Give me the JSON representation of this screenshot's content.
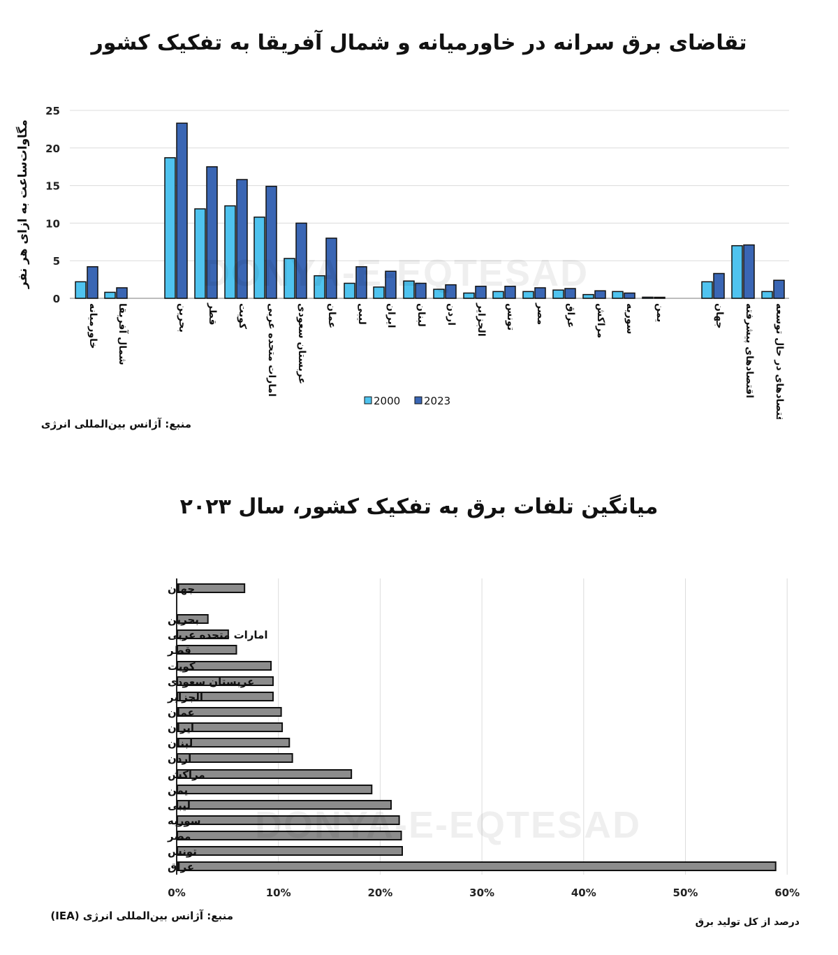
{
  "chart_data": [
    {
      "type": "bar",
      "title": "تقاضای برق سرانه در خاورمیانه و شمال آفریقا به تفکیک کشور",
      "xlabel": "",
      "ylabel": "مگاوات‌ساعت به ازای هر نفر",
      "ylim": [
        0,
        25
      ],
      "yticks": [
        0,
        5,
        10,
        15,
        20,
        25
      ],
      "grid": true,
      "legend_position": "bottom",
      "categories": [
        "خاورمیانه",
        "شمال آفریقا",
        "بحرین",
        "قطر",
        "کویت",
        "امارات متحده عربی",
        "عربستان سعودی",
        "عمان",
        "لیبی",
        "ایران",
        "لبنان",
        "اردن",
        "الجزایر",
        "تونس",
        "مصر",
        "عراق",
        "مراکش",
        "سوریه",
        "یمن",
        "جهان",
        "اقتصادهای پیشرفته",
        "اقتصادهای در حال توسعه"
      ],
      "series": [
        {
          "name": "2000",
          "color": "#4fc3ef",
          "values": [
            2.2,
            0.8,
            18.7,
            11.9,
            12.3,
            10.8,
            5.3,
            3.0,
            2.0,
            1.5,
            2.3,
            1.2,
            0.7,
            0.9,
            0.9,
            1.1,
            0.5,
            0.9,
            0.15,
            2.2,
            7.0,
            0.9
          ]
        },
        {
          "name": "2023",
          "color": "#3a66b4",
          "values": [
            4.2,
            1.4,
            23.3,
            17.5,
            15.8,
            14.9,
            10.0,
            8.0,
            4.2,
            3.6,
            2.0,
            1.8,
            1.6,
            1.6,
            1.4,
            1.3,
            1.0,
            0.7,
            0.1,
            3.3,
            7.1,
            2.4
          ]
        }
      ],
      "source": "منبع: آژانس بین‌المللی انرژی"
    },
    {
      "type": "bar",
      "orientation": "horizontal",
      "title": "میانگین تلفات برق به تفکیک کشور، سال ۲۰۲۳",
      "xlabel": "درصد از کل تولید برق",
      "ylabel": "",
      "xlim": [
        0,
        60
      ],
      "xticks": [
        "0%",
        "10%",
        "20%",
        "30%",
        "40%",
        "50%",
        "60%"
      ],
      "grid": true,
      "categories": [
        "جهان",
        "بحرین",
        "امارات متحده عربی",
        "قطر",
        "کویت",
        "عربستان سعودی",
        "الجزایر",
        "عمان",
        "ایران",
        "لبنان",
        "اردن",
        "مراکش",
        "یمن",
        "لیبی",
        "سوریه",
        "مصر",
        "تونس",
        "عراق"
      ],
      "values": [
        6.6,
        3.0,
        5.0,
        5.8,
        9.2,
        9.4,
        9.4,
        10.2,
        10.3,
        11.0,
        11.3,
        17.1,
        19.1,
        21.0,
        21.8,
        22.0,
        22.1,
        58.8
      ],
      "color": "#8c8c8c",
      "source": "منبع: آژانس بین‌المللی انرژی (IEA)"
    }
  ],
  "watermark": {
    "text_latin": "DONYA-E-EQTESAD"
  }
}
